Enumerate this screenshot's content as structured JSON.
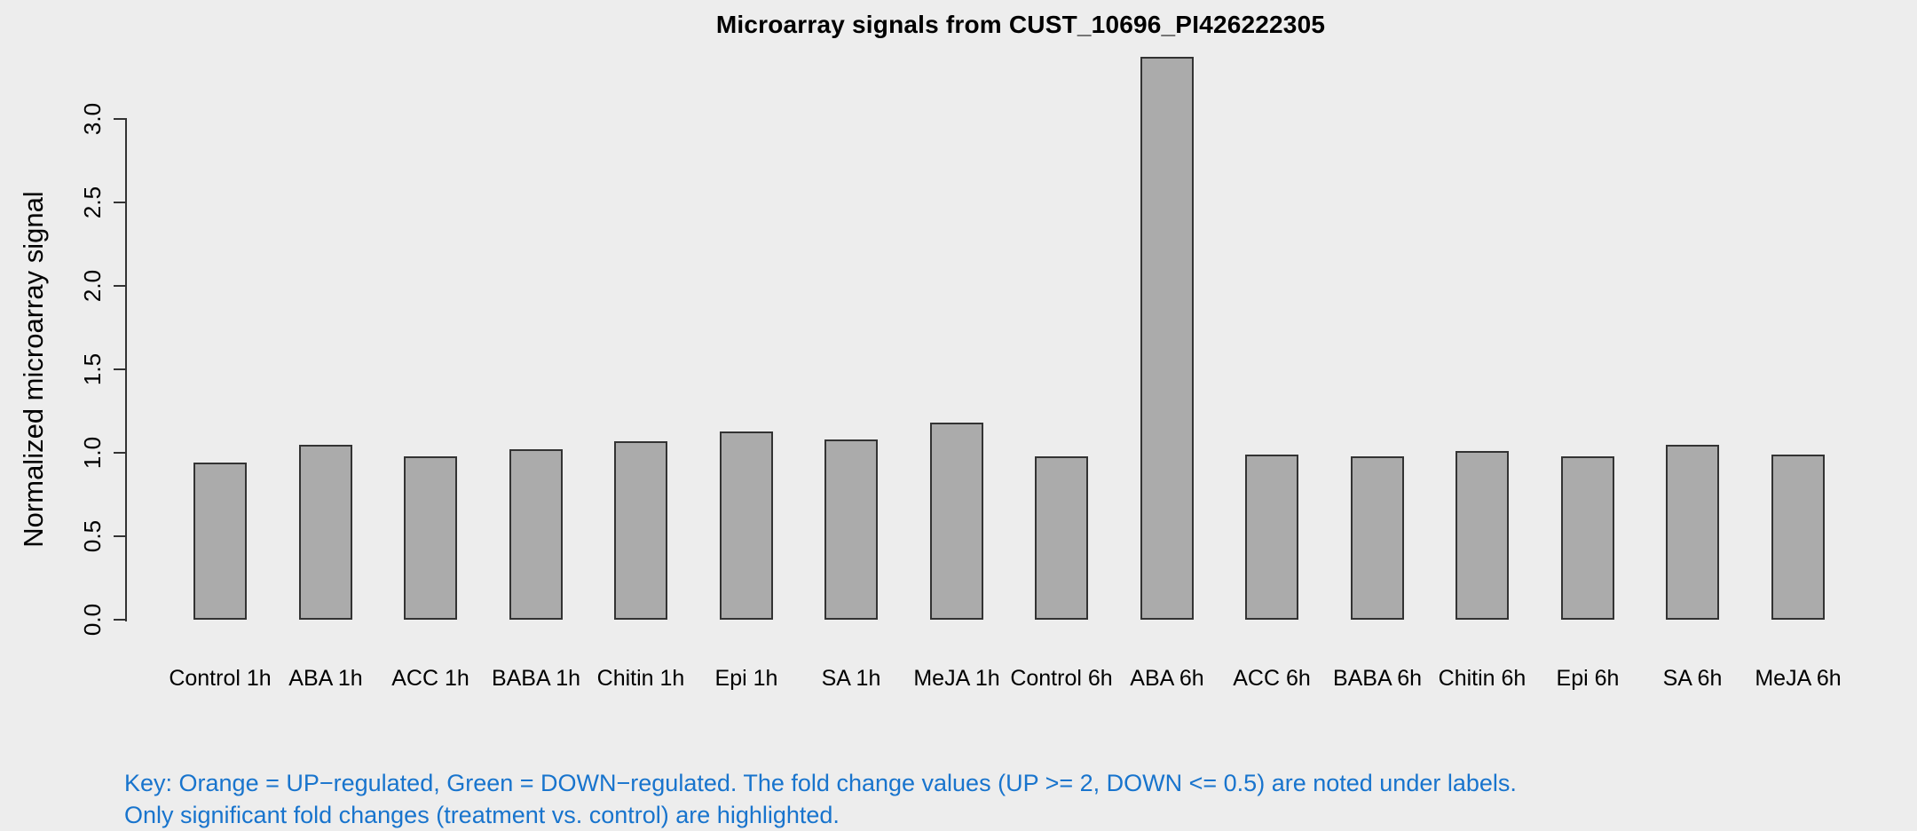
{
  "background_color": "#EDEDED",
  "chart_data": {
    "type": "bar",
    "title": "Microarray signals from CUST_10696_PI426222305",
    "ylabel": "Normalized microarray signal",
    "xlabel": "",
    "categories": [
      "Control 1h",
      "ABA 1h",
      "ACC 1h",
      "BABA 1h",
      "Chitin 1h",
      "Epi 1h",
      "SA 1h",
      "MeJA 1h",
      "Control 6h",
      "ABA 6h",
      "ACC 6h",
      "BABA 6h",
      "Chitin 6h",
      "Epi 6h",
      "SA 6h",
      "MeJA 6h"
    ],
    "values": [
      0.94,
      1.05,
      0.98,
      1.02,
      1.07,
      1.13,
      1.08,
      1.18,
      0.98,
      3.37,
      0.99,
      0.98,
      1.01,
      0.98,
      1.05,
      0.99
    ],
    "ylim": [
      0,
      3.37
    ],
    "ytick_labels": [
      "0.0",
      "0.5",
      "1.0",
      "1.5",
      "2.0",
      "2.5",
      "3.0"
    ],
    "ytick_values": [
      0,
      0.5,
      1,
      1.5,
      2,
      2.5,
      3
    ],
    "grid": false,
    "legend_position": "none",
    "bar_fill": "#ABABAB",
    "bar_border": "#333333",
    "axis_color": "#333333",
    "text_color": "#000000"
  },
  "key": {
    "line1": "Key: Orange = UP−regulated, Green = DOWN−regulated. The fold change values (UP >= 2, DOWN <= 0.5) are noted under labels.",
    "line2": "Only significant fold changes (treatment vs. control) are highlighted.",
    "color": "#1874CD"
  }
}
